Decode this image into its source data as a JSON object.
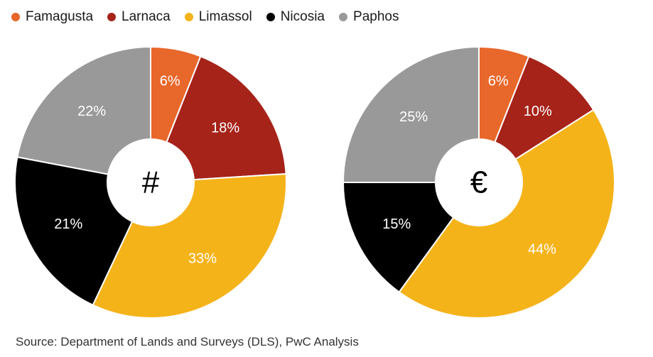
{
  "legend": [
    {
      "label": "Famagusta",
      "color": "#E8672A"
    },
    {
      "label": "Larnaca",
      "color": "#A6231A"
    },
    {
      "label": "Limassol",
      "color": "#F5B31A"
    },
    {
      "label": "Nicosia",
      "color": "#000000"
    },
    {
      "label": "Paphos",
      "color": "#999999"
    }
  ],
  "chart_data": [
    {
      "type": "pie",
      "variant": "donut",
      "center_label": "#",
      "categories": [
        "Famagusta",
        "Larnaca",
        "Limassol",
        "Nicosia",
        "Paphos"
      ],
      "values": [
        6,
        18,
        33,
        21,
        22
      ],
      "labels": [
        "6%",
        "18%",
        "33%",
        "21%",
        "22%"
      ],
      "unit": "%"
    },
    {
      "type": "pie",
      "variant": "donut",
      "center_label": "€",
      "categories": [
        "Famagusta",
        "Larnaca",
        "Limassol",
        "Nicosia",
        "Paphos"
      ],
      "values": [
        6,
        10,
        44,
        15,
        25
      ],
      "labels": [
        "6%",
        "10%",
        "44%",
        "15%",
        "25%"
      ],
      "unit": "%"
    }
  ],
  "source": "Source: Department of Lands and Surveys (DLS), PwC Analysis"
}
